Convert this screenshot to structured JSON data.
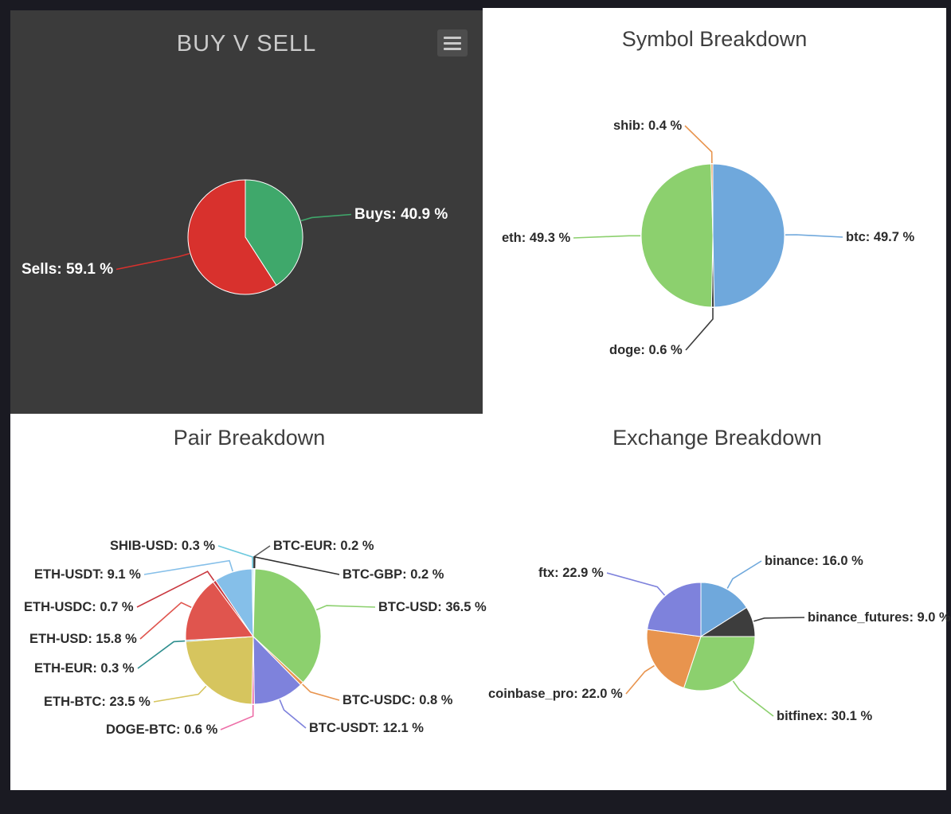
{
  "page": {
    "background": "#1a1a22",
    "panel_dark": "#3b3b3b",
    "panel_light": "#ffffff"
  },
  "buy_v_sell": {
    "title": "BUY V SELL"
  },
  "symbol": {
    "title": "Symbol Breakdown"
  },
  "pair": {
    "title": "Pair Breakdown"
  },
  "exchange": {
    "title": "Exchange Breakdown"
  },
  "chart_data": [
    {
      "id": "buysell",
      "type": "pie",
      "title": "BUY V SELL",
      "labels": [
        "Buys",
        "Sells"
      ],
      "values": [
        40.9,
        59.1
      ],
      "unit": "%",
      "colors": [
        "#3fa86b",
        "#d8312d"
      ],
      "display_labels": [
        "Buys: 40.9 %",
        "Sells: 59.1 %"
      ],
      "legend_position": "none"
    },
    {
      "id": "symbol",
      "type": "pie",
      "title": "Symbol Breakdown",
      "labels": [
        "btc",
        "doge",
        "eth",
        "shib"
      ],
      "values": [
        49.7,
        0.6,
        49.3,
        0.4
      ],
      "unit": "%",
      "colors": [
        "#6fa8dc",
        "#3d3d3d",
        "#8cd06e",
        "#e8944e"
      ],
      "display_labels": [
        "btc: 49.7 %",
        "doge: 0.6 %",
        "eth: 49.3 %",
        "shib: 0.4 %"
      ],
      "legend_position": "none"
    },
    {
      "id": "pair",
      "type": "pie",
      "title": "Pair Breakdown",
      "labels": [
        "BTC-EUR",
        "BTC-GBP",
        "BTC-USD",
        "BTC-USDC",
        "BTC-USDT",
        "DOGE-BTC",
        "ETH-BTC",
        "ETH-EUR",
        "ETH-USD",
        "ETH-USDC",
        "ETH-USDT",
        "SHIB-USD"
      ],
      "values": [
        0.2,
        0.2,
        36.5,
        0.8,
        12.1,
        0.6,
        23.5,
        0.3,
        15.8,
        0.7,
        9.1,
        0.3
      ],
      "unit": "%",
      "colors": [
        "#5a5a5a",
        "#2f2f2f",
        "#8cd06e",
        "#e8944e",
        "#7e82dc",
        "#ed6fa8",
        "#d6c55e",
        "#2f8f8f",
        "#e0554e",
        "#c9383f",
        "#85bfe9",
        "#6cc9de"
      ],
      "display_labels": [
        "BTC-EUR: 0.2 %",
        "BTC-GBP: 0.2 %",
        "BTC-USD: 36.5 %",
        "BTC-USDC: 0.8 %",
        "BTC-USDT: 12.1 %",
        "DOGE-BTC: 0.6 %",
        "ETH-BTC: 23.5 %",
        "ETH-EUR: 0.3 %",
        "ETH-USD: 15.8 %",
        "ETH-USDC: 0.7 %",
        "ETH-USDT: 9.1 %",
        "SHIB-USD: 0.3 %"
      ],
      "legend_position": "none"
    },
    {
      "id": "exchange",
      "type": "pie",
      "title": "Exchange Breakdown",
      "labels": [
        "binance",
        "binance_futures",
        "bitfinex",
        "coinbase_pro",
        "ftx"
      ],
      "values": [
        16.0,
        9.0,
        30.1,
        22.0,
        22.9
      ],
      "unit": "%",
      "colors": [
        "#6fa8dc",
        "#3d3d3d",
        "#8cd06e",
        "#e8944e",
        "#7e82dc"
      ],
      "display_labels": [
        "binance: 16.0 %",
        "binance_futures: 9.0 %",
        "bitfinex: 30.1 %",
        "coinbase_pro: 22.0 %",
        "ftx: 22.9 %"
      ],
      "legend_position": "none"
    }
  ]
}
